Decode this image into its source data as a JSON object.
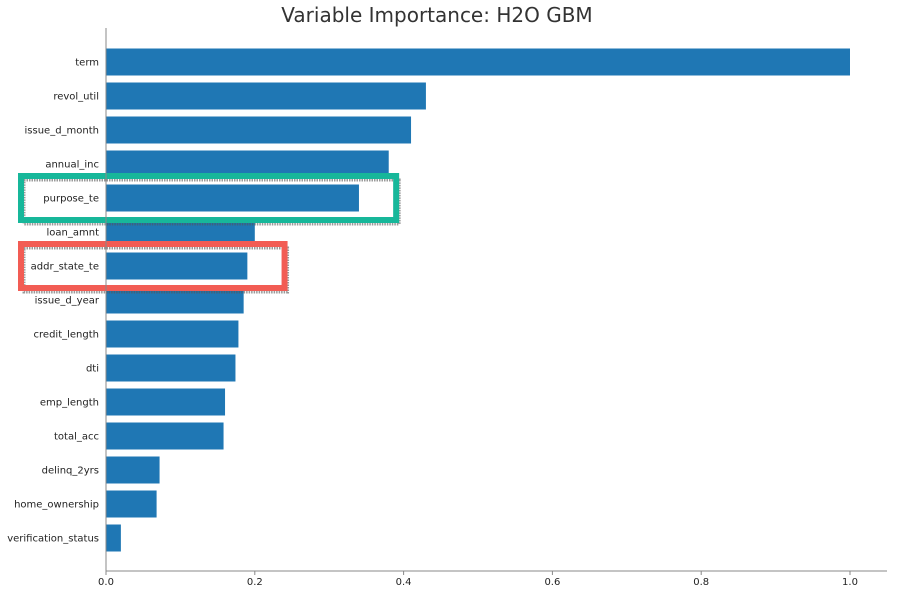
{
  "chart_data": {
    "type": "bar",
    "orientation": "horizontal",
    "title": "Variable Importance: H2O GBM",
    "xlabel": "",
    "ylabel": "",
    "xlim": [
      0,
      1.05
    ],
    "x_ticks": [
      "0.0",
      "0.2",
      "0.4",
      "0.6",
      "0.8",
      "1.0"
    ],
    "x_tick_values": [
      0,
      0.2,
      0.4,
      0.6,
      0.8,
      1.0
    ],
    "grid": false,
    "bar_color": "#1f77b4",
    "categories": [
      "term",
      "revol_util",
      "issue_d_month",
      "annual_inc",
      "purpose_te",
      "loan_amnt",
      "addr_state_te",
      "issue_d_year",
      "credit_length",
      "dti",
      "emp_length",
      "total_acc",
      "delinq_2yrs",
      "home_ownership",
      "verification_status"
    ],
    "values": [
      1.0,
      0.43,
      0.41,
      0.38,
      0.34,
      0.2,
      0.19,
      0.185,
      0.178,
      0.174,
      0.16,
      0.158,
      0.072,
      0.068,
      0.02
    ],
    "highlights": [
      {
        "category": "purpose_te",
        "color": "#17b79a",
        "x_extent": 0.39
      },
      {
        "category": "addr_state_te",
        "color": "#f25c54",
        "x_extent": 0.24
      }
    ]
  }
}
